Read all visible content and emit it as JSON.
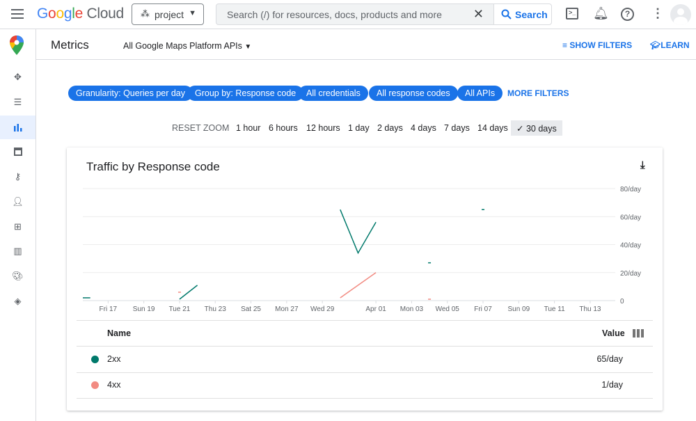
{
  "topbar": {
    "logo": "Google Cloud",
    "project": "project",
    "search_placeholder": "Search (/) for resources, docs, products and more",
    "search_button": "Search"
  },
  "sidebar": {
    "items": [
      {
        "icon": "move-icon"
      },
      {
        "icon": "list-icon"
      },
      {
        "icon": "bar-chart-icon",
        "active": true
      },
      {
        "icon": "quota-icon"
      },
      {
        "icon": "key-icon"
      },
      {
        "icon": "person-icon"
      },
      {
        "icon": "apps-icon"
      },
      {
        "icon": "map-icon"
      },
      {
        "icon": "palette-icon"
      },
      {
        "icon": "layers-icon"
      }
    ]
  },
  "header": {
    "title": "Metrics",
    "api_select": "All Google Maps Platform APIs",
    "show_filters": "SHOW FILTERS",
    "learn": "LEARN"
  },
  "filters": {
    "chips": [
      "Granularity: Queries per day",
      "Group by: Response code",
      "All credentials",
      "All response codes",
      "All APIs"
    ],
    "more": "MORE FILTERS"
  },
  "zoom": {
    "reset": "RESET ZOOM",
    "options": [
      "1 hour",
      "6 hours",
      "12 hours",
      "1 day",
      "2 days",
      "4 days",
      "7 days",
      "14 days",
      "30 days"
    ],
    "selected": "30 days"
  },
  "card": {
    "title": "Traffic by Response code"
  },
  "chart_data": {
    "type": "line",
    "title": "Traffic by Response code",
    "xlim": [
      "Mar 15 14:00",
      "Apr 14 06:00"
    ],
    "x_ticks": [
      "Fri 17",
      "Sun 19",
      "Tue 21",
      "Thu 23",
      "Sat 25",
      "Mon 27",
      "Wed 29",
      "Apr 01",
      "Mon 03",
      "Wed 05",
      "Fri 07",
      "Sun 09",
      "Tue 11",
      "Thu 13"
    ],
    "y_ticks": [
      "0",
      "20/day",
      "40/day",
      "60/day",
      "80/day"
    ],
    "ylim": [
      0,
      80
    ],
    "grid": true,
    "series": [
      {
        "name": "2xx",
        "color": "#00796b",
        "segments": [
          [
            [
              "Mar 15",
              2
            ],
            [
              "Mar 16",
              2
            ]
          ],
          [
            [
              "Mar 21",
              1
            ],
            [
              "Mar 22",
              11
            ]
          ],
          [
            [
              "Mar 30",
              65
            ],
            [
              "Mar 31",
              34
            ],
            [
              "Apr 01",
              56
            ]
          ],
          [
            [
              "Apr 04",
              27
            ]
          ],
          [
            [
              "Apr 07",
              65
            ]
          ]
        ]
      },
      {
        "name": "4xx",
        "color": "#f28b82",
        "segments": [
          [
            [
              "Mar 21",
              6
            ]
          ],
          [
            [
              "Mar 30",
              2
            ],
            [
              "Apr 01",
              20
            ]
          ],
          [
            [
              "Apr 04",
              1
            ]
          ]
        ]
      }
    ]
  },
  "table": {
    "headers": {
      "name": "Name",
      "value": "Value"
    },
    "rows": [
      {
        "name": "2xx",
        "value": "65/day",
        "color": "#00796b"
      },
      {
        "name": "4xx",
        "value": "1/day",
        "color": "#f28b82"
      }
    ]
  }
}
